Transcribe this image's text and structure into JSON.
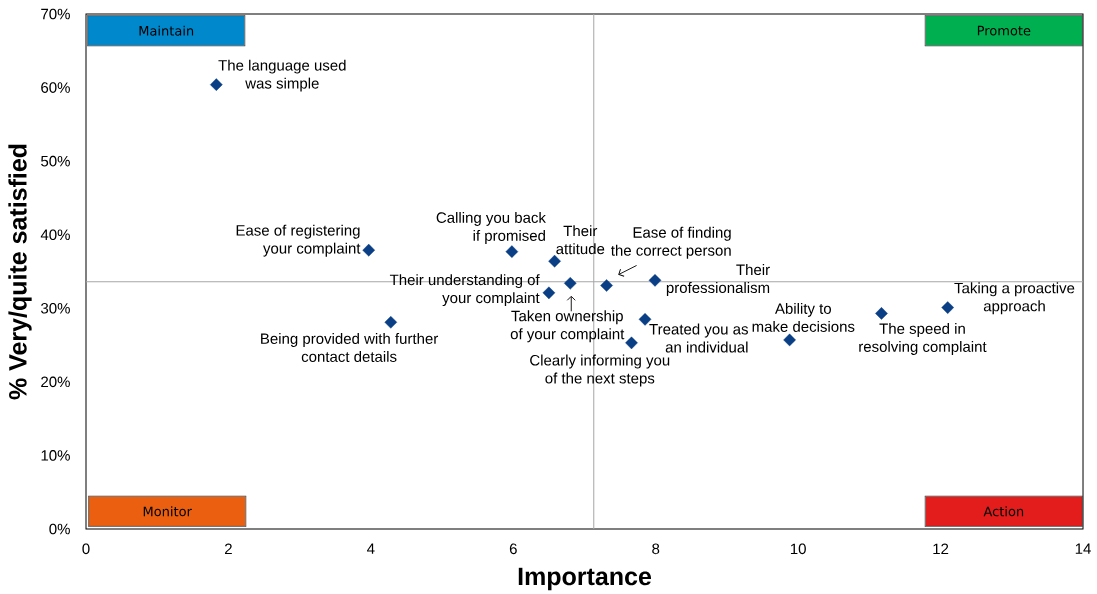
{
  "chart_data": {
    "type": "scatter",
    "xlabel": "Importance",
    "ylabel": "% Very/quite satisfied",
    "x": [
      1.83,
      3.97,
      4.28,
      5.98,
      6.58,
      6.5,
      6.8,
      7.31,
      7.99,
      7.85,
      7.66,
      9.88,
      11.17,
      12.1
    ],
    "values": [
      60.4,
      37.9,
      28.1,
      37.7,
      36.4,
      32.1,
      33.4,
      33.1,
      33.8,
      28.5,
      25.3,
      25.7,
      29.3,
      30.1
    ],
    "color": "#0a3f86",
    "marker": "diamond",
    "xlim": [
      0,
      14
    ],
    "xticks": [
      0,
      2,
      4,
      6,
      8,
      10,
      12,
      14
    ],
    "ylim": [
      0,
      70
    ],
    "yticks": [
      {
        "value": 0,
        "label": "0%"
      },
      {
        "value": 10,
        "label": "10%"
      },
      {
        "value": 20,
        "label": "20%"
      },
      {
        "value": 30,
        "label": "30%"
      },
      {
        "value": 40,
        "label": "40%"
      },
      {
        "value": 50,
        "label": "50%"
      },
      {
        "value": 60,
        "label": "60%"
      },
      {
        "value": 70,
        "label": "70%"
      }
    ],
    "ref_lines": [
      {
        "axis": "x",
        "value": 7.13,
        "color": "#a6a6a6"
      },
      {
        "axis": "y",
        "value": 33.6,
        "color": "#a6a6a6"
      }
    ],
    "annotations": [
      "Maintain",
      "Promote",
      "Monitor",
      "Action",
      {
        "text": "The language used was simple",
        "x": 1.83,
        "y": 60.4
      },
      {
        "text": "Ease of registering your complaint",
        "x": 3.97,
        "y": 37.9
      },
      {
        "text": "Being provided with further contact details",
        "x": 4.28,
        "y": 28.1
      },
      {
        "text": "Calling you back if promised",
        "x": 5.98,
        "y": 37.7
      },
      {
        "text": "Their attitude",
        "x": 6.58,
        "y": 36.4
      },
      {
        "text": "Their understanding of your complaint",
        "x": 6.5,
        "y": 32.1
      },
      {
        "text": "Taken ownership of your complaint",
        "x": 6.8,
        "y": 33.4
      },
      {
        "text": "Ease of finding the correct person",
        "x": 7.31,
        "y": 33.1
      },
      {
        "text": "Their professionalism",
        "x": 7.99,
        "y": 33.8
      },
      {
        "text": "Treated you as an individual",
        "x": 7.85,
        "y": 28.5
      },
      {
        "text": "Clearly informing you of the next steps",
        "x": 7.66,
        "y": 25.3
      },
      {
        "text": "Ability to make decisions",
        "x": 9.88,
        "y": 25.7
      },
      {
        "text": "The speed in resolving complaint",
        "x": 11.17,
        "y": 29.3
      },
      {
        "text": "Taking a proactive approach",
        "x": 12.1,
        "y": 30.1
      }
    ]
  }
}
